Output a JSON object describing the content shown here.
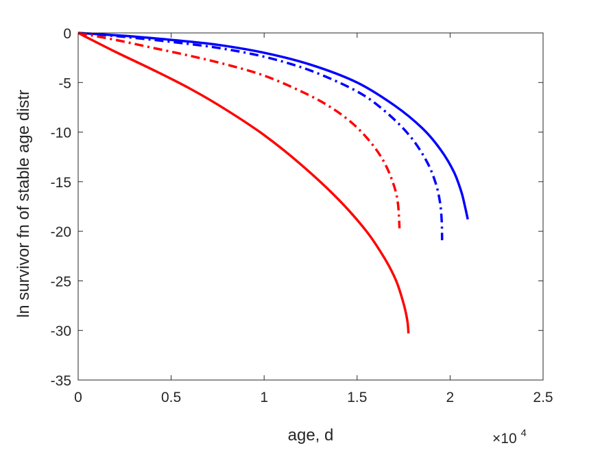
{
  "chart_data": {
    "type": "line",
    "title": "",
    "xlabel": "age, d",
    "ylabel": "ln survivor fn of stable age distr",
    "x_multiplier_label": "×10",
    "x_multiplier_exponent": "4",
    "xlim": [
      0,
      25000
    ],
    "ylim": [
      -35,
      0
    ],
    "xticks": [
      0,
      5000,
      10000,
      15000,
      20000,
      25000
    ],
    "xtick_labels": [
      "0",
      "0.5",
      "1",
      "1.5",
      "2",
      "2.5"
    ],
    "yticks": [
      0,
      -5,
      -10,
      -15,
      -20,
      -25,
      -30,
      -35
    ],
    "ytick_labels": [
      "0",
      "-5",
      "-10",
      "-15",
      "-20",
      "-25",
      "-30",
      "-35"
    ],
    "grid": false,
    "series": [
      {
        "color": "#0000ff",
        "line_style": "solid",
        "points": [
          [
            0,
            0
          ],
          [
            2500,
            -0.3
          ],
          [
            5000,
            -0.7
          ],
          [
            7500,
            -1.2
          ],
          [
            10000,
            -2.0
          ],
          [
            12500,
            -3.2
          ],
          [
            15000,
            -5.0
          ],
          [
            17000,
            -7.3
          ],
          [
            18500,
            -9.6
          ],
          [
            19500,
            -11.8
          ],
          [
            20200,
            -14.0
          ],
          [
            20600,
            -16.0
          ],
          [
            20800,
            -17.5
          ],
          [
            20950,
            -18.8
          ]
        ]
      },
      {
        "color": "#0000ff",
        "line_style": "dashdot",
        "points": [
          [
            0,
            0
          ],
          [
            2500,
            -0.4
          ],
          [
            5000,
            -0.9
          ],
          [
            7500,
            -1.5
          ],
          [
            10000,
            -2.4
          ],
          [
            12500,
            -3.8
          ],
          [
            15000,
            -5.9
          ],
          [
            16500,
            -7.9
          ],
          [
            17800,
            -10.3
          ],
          [
            18700,
            -12.8
          ],
          [
            19200,
            -15.0
          ],
          [
            19450,
            -17.0
          ],
          [
            19550,
            -19.0
          ],
          [
            19570,
            -20.9
          ]
        ]
      },
      {
        "color": "#ff0000",
        "line_style": "dashdot",
        "points": [
          [
            0,
            0
          ],
          [
            2000,
            -0.7
          ],
          [
            4000,
            -1.5
          ],
          [
            6000,
            -2.3
          ],
          [
            8000,
            -3.2
          ],
          [
            10000,
            -4.3
          ],
          [
            12000,
            -5.9
          ],
          [
            13500,
            -7.4
          ],
          [
            14800,
            -9.2
          ],
          [
            15800,
            -11.2
          ],
          [
            16500,
            -13.2
          ],
          [
            17000,
            -15.5
          ],
          [
            17200,
            -17.3
          ],
          [
            17280,
            -19.7
          ]
        ]
      },
      {
        "color": "#ff0000",
        "line_style": "solid",
        "points": [
          [
            0,
            0
          ],
          [
            2000,
            -1.9
          ],
          [
            4000,
            -3.7
          ],
          [
            6000,
            -5.6
          ],
          [
            8000,
            -7.8
          ],
          [
            10000,
            -10.3
          ],
          [
            12000,
            -13.3
          ],
          [
            14000,
            -16.8
          ],
          [
            15500,
            -20.0
          ],
          [
            16500,
            -22.8
          ],
          [
            17100,
            -25.0
          ],
          [
            17500,
            -27.3
          ],
          [
            17700,
            -29.0
          ],
          [
            17760,
            -30.3
          ]
        ]
      }
    ]
  }
}
